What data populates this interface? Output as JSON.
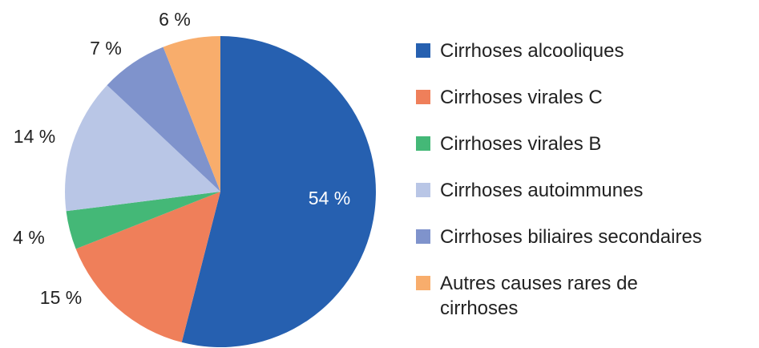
{
  "chart_data": {
    "type": "pie",
    "categories": [
      "Cirrhoses alcooliques",
      "Cirrhoses virales C",
      "Cirrhoses virales B",
      "Cirrhoses autoimmunes",
      "Cirrhoses biliaires secondaires",
      "Autres causes rares de cirrhoses"
    ],
    "values": [
      54,
      15,
      4,
      14,
      7,
      6
    ],
    "labels": [
      "54 %",
      "15 %",
      "4 %",
      "14 %",
      "7 %",
      "6 %"
    ],
    "legend_lines": [
      [
        "Cirrhoses alcooliques"
      ],
      [
        "Cirrhoses virales C"
      ],
      [
        "Cirrhoses virales B"
      ],
      [
        "Cirrhoses autoimmunes"
      ],
      [
        "Cirrhoses biliaires secondaires"
      ],
      [
        "Autres causes rares de",
        "cirrhoses"
      ]
    ],
    "colors": [
      "#2660b0",
      "#ef7f5a",
      "#44b877",
      "#b9c6e6",
      "#7f93cc",
      "#f8ad6c"
    ],
    "legend_position": "right"
  }
}
